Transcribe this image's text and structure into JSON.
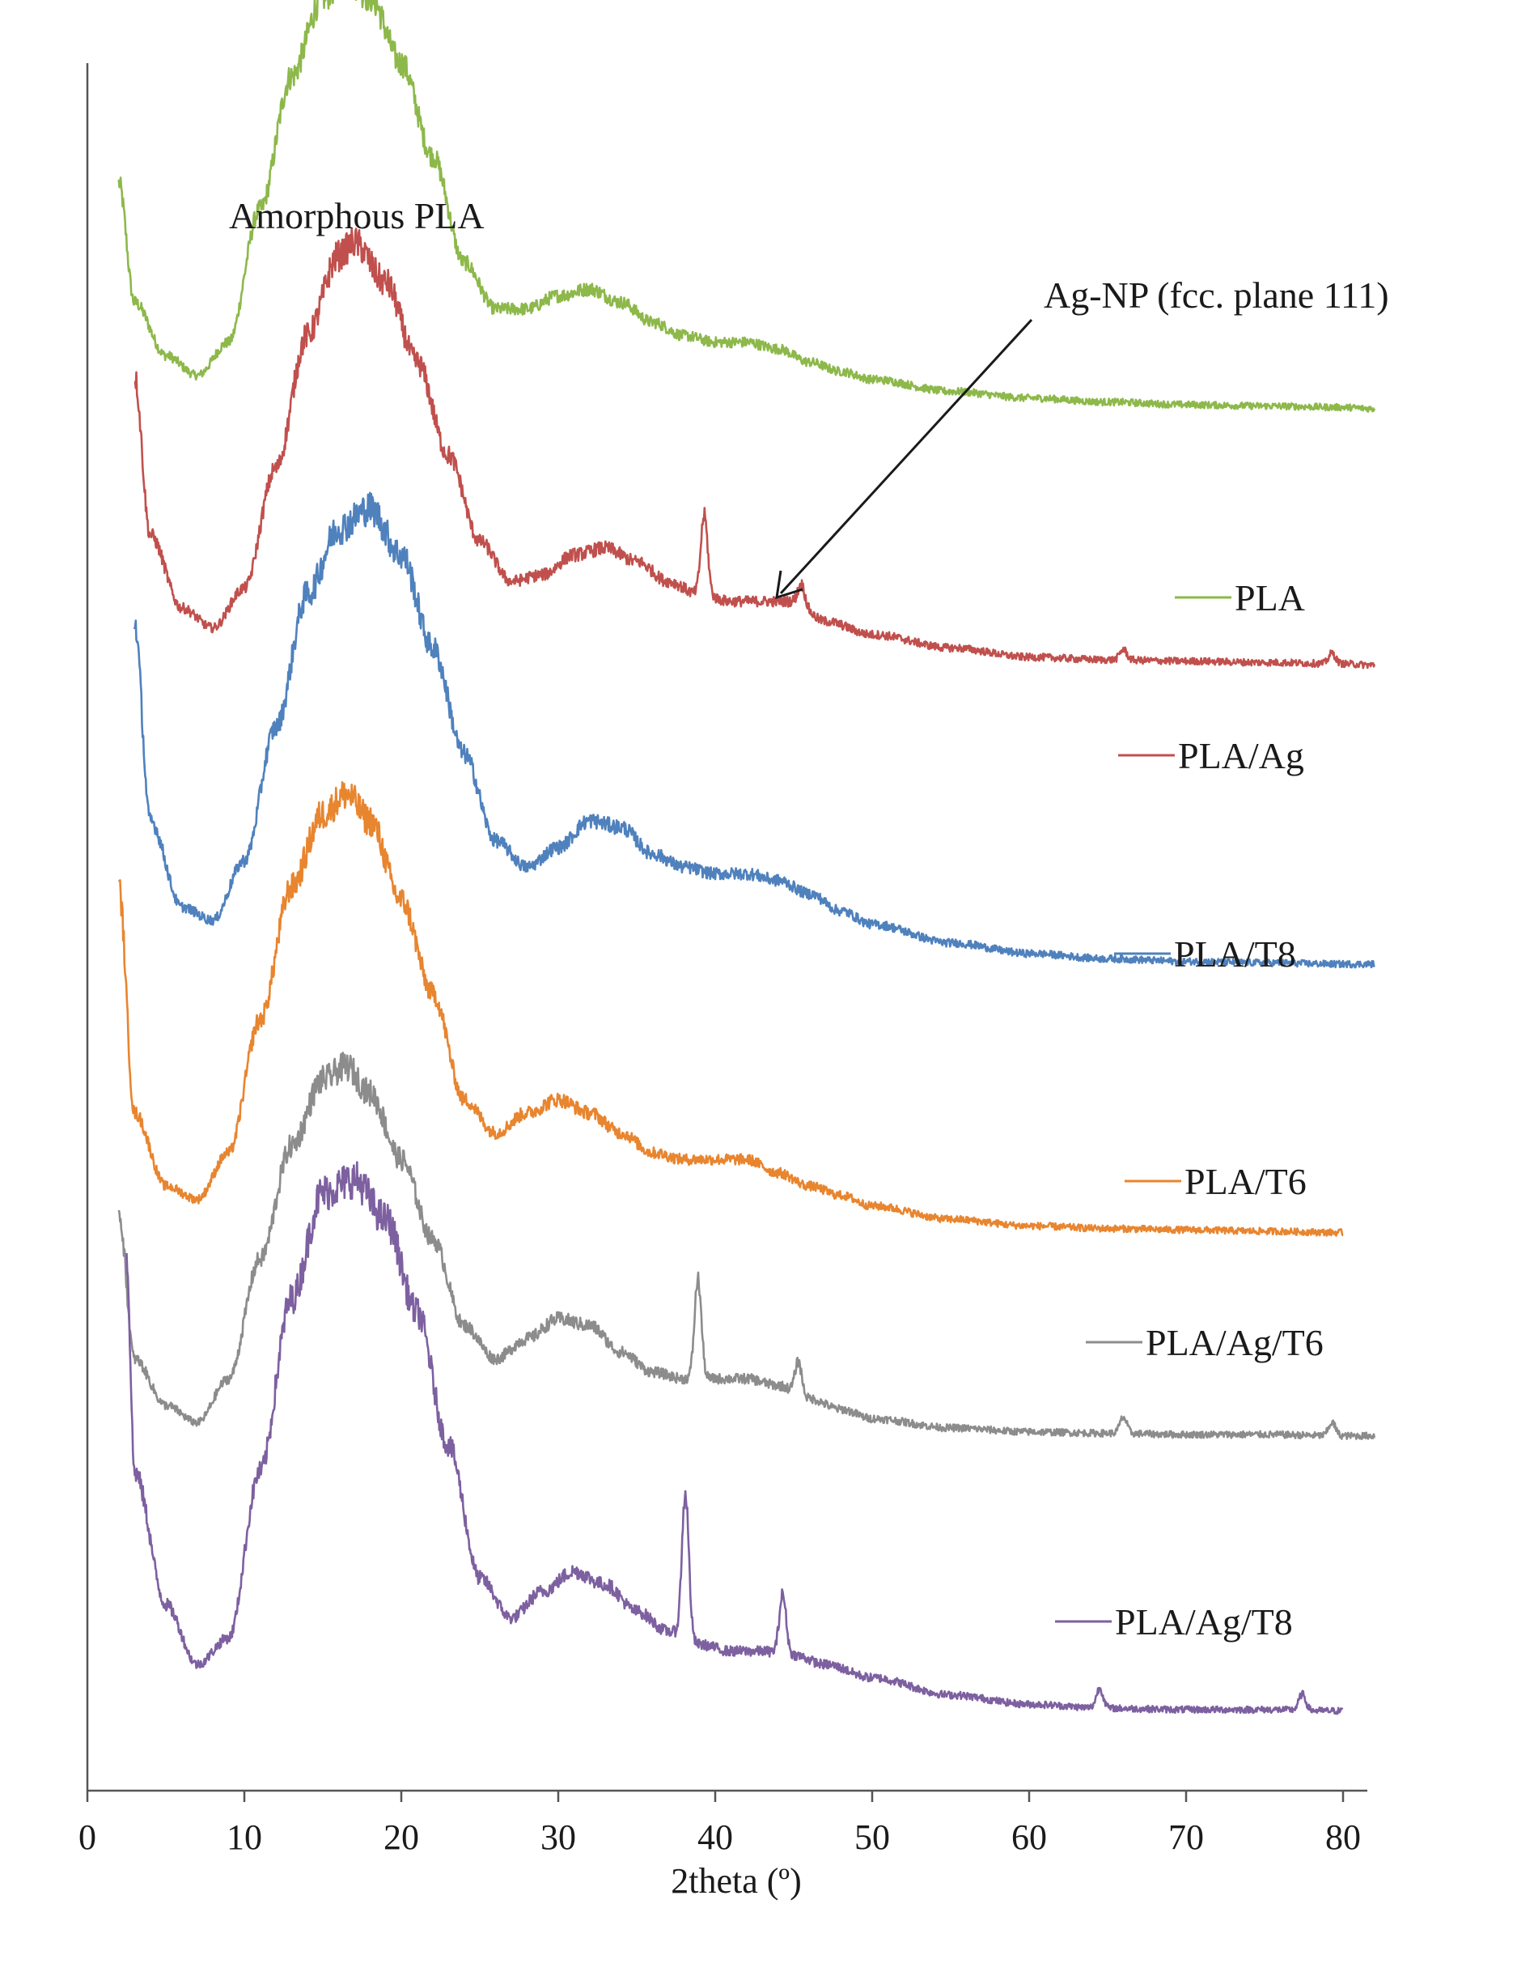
{
  "chart_data": {
    "type": "line",
    "title": "",
    "xlabel": "2theta (º)",
    "ylabel": "",
    "xlim": [
      0,
      80
    ],
    "ylim": [
      0,
      13
    ],
    "y_axis_ticks_shown": false,
    "grid": false,
    "x_ticks": [
      "0",
      "10",
      "20",
      "30",
      "40",
      "50",
      "60",
      "70",
      "80"
    ],
    "colors": {
      "PLA": "#8db84a",
      "PLA/Ag": "#c0504d",
      "PLA/T8": "#4f81bd",
      "PLA/T6": "#e8852f",
      "PLA/Ag/T6": "#8c8c8c",
      "PLA/Ag/T8": "#7d60a0"
    },
    "series": [
      {
        "name": "PLA",
        "offset": 10.4,
        "x": [
          2,
          3,
          5,
          7,
          9,
          11,
          13,
          15,
          16.5,
          18,
          20,
          22,
          24,
          26,
          28,
          30,
          32,
          34,
          36,
          38,
          40,
          42,
          44,
          46,
          48,
          50,
          55,
          60,
          65,
          70,
          75,
          80,
          82
        ],
        "y": [
          1.7,
          0.8,
          0.4,
          0.25,
          0.5,
          1.5,
          2.5,
          3.1,
          3.25,
          3.1,
          2.6,
          1.9,
          1.1,
          0.75,
          0.75,
          0.85,
          0.9,
          0.8,
          0.65,
          0.55,
          0.5,
          0.5,
          0.45,
          0.35,
          0.28,
          0.22,
          0.13,
          0.08,
          0.05,
          0.03,
          0.02,
          0.01,
          0.0
        ],
        "peaks": []
      },
      {
        "name": "PLA/Ag",
        "offset": 8.45,
        "x": [
          3,
          4,
          6,
          8,
          10,
          12,
          14,
          16,
          17,
          19,
          21,
          23,
          25,
          27,
          29,
          31,
          33,
          35,
          37,
          39,
          41,
          43,
          45,
          47,
          50,
          55,
          60,
          65,
          70,
          75,
          80,
          82
        ],
        "y": [
          2.2,
          1.0,
          0.45,
          0.3,
          0.6,
          1.5,
          2.5,
          3.1,
          3.2,
          2.9,
          2.3,
          1.6,
          0.95,
          0.65,
          0.7,
          0.85,
          0.9,
          0.8,
          0.65,
          0.55,
          0.5,
          0.5,
          0.5,
          0.35,
          0.25,
          0.15,
          0.08,
          0.06,
          0.05,
          0.04,
          0.03,
          0.02
        ],
        "peaks": [
          {
            "x": 39.3,
            "h": 0.6
          },
          {
            "x": 45.5,
            "h": 0.15
          },
          {
            "x": 66.0,
            "h": 0.08
          },
          {
            "x": 79.3,
            "h": 0.08
          }
        ]
      },
      {
        "name": "PLA/T8",
        "offset": 6.2,
        "x": [
          3,
          4,
          6,
          8,
          10,
          12,
          14,
          16,
          18,
          20,
          22,
          24,
          26,
          28,
          30,
          32,
          34,
          36,
          38,
          40,
          42,
          44,
          46,
          48,
          50,
          55,
          60,
          65,
          70,
          75,
          80,
          82
        ],
        "y": [
          2.6,
          1.1,
          0.45,
          0.35,
          0.8,
          1.8,
          2.8,
          3.3,
          3.45,
          3.1,
          2.4,
          1.6,
          0.95,
          0.75,
          0.9,
          1.1,
          1.05,
          0.85,
          0.75,
          0.7,
          0.7,
          0.65,
          0.55,
          0.42,
          0.32,
          0.18,
          0.1,
          0.06,
          0.04,
          0.03,
          0.02,
          0.02
        ],
        "peaks": []
      },
      {
        "name": "PLA/T6",
        "offset": 4.2,
        "x": [
          2,
          3,
          5,
          7,
          9,
          11,
          13,
          15,
          16.5,
          18,
          20,
          22,
          24,
          26,
          28,
          30,
          32,
          34,
          36,
          38,
          40,
          42,
          44,
          46,
          48,
          50,
          55,
          60,
          65,
          70,
          75,
          80
        ],
        "y": [
          2.6,
          0.9,
          0.35,
          0.25,
          0.6,
          1.6,
          2.6,
          3.15,
          3.3,
          3.1,
          2.5,
          1.8,
          1.0,
          0.75,
          0.9,
          1.0,
          0.9,
          0.75,
          0.6,
          0.55,
          0.55,
          0.55,
          0.45,
          0.35,
          0.28,
          0.2,
          0.1,
          0.05,
          0.03,
          0.02,
          0.01,
          0.0
        ],
        "peaks": []
      },
      {
        "name": "PLA/Ag/T6",
        "offset": 2.65,
        "x": [
          2,
          3,
          5,
          7,
          9,
          11,
          13,
          15,
          16.5,
          18,
          20,
          22,
          24,
          26,
          28,
          30,
          32,
          34,
          36,
          38,
          40,
          42,
          44,
          46,
          48,
          50,
          55,
          60,
          65,
          70,
          75,
          80,
          82
        ],
        "y": [
          1.7,
          0.6,
          0.25,
          0.12,
          0.45,
          1.35,
          2.2,
          2.7,
          2.8,
          2.6,
          2.1,
          1.5,
          0.85,
          0.6,
          0.75,
          0.9,
          0.85,
          0.65,
          0.5,
          0.45,
          0.45,
          0.45,
          0.4,
          0.3,
          0.22,
          0.15,
          0.08,
          0.05,
          0.04,
          0.03,
          0.03,
          0.02,
          0.02
        ],
        "peaks": [
          {
            "x": 38.9,
            "h": 0.75
          },
          {
            "x": 45.3,
            "h": 0.25
          },
          {
            "x": 66.0,
            "h": 0.12
          },
          {
            "x": 79.3,
            "h": 0.1
          }
        ]
      },
      {
        "name": "PLA/Ag/T8",
        "offset": 0.6,
        "x": [
          2.5,
          3,
          5,
          7,
          9,
          11,
          13,
          15,
          17,
          19,
          21,
          23,
          25,
          27,
          29,
          31,
          33,
          35,
          37,
          39,
          41,
          43,
          45,
          47,
          50,
          55,
          60,
          65,
          70,
          75,
          80
        ],
        "y": [
          3.4,
          1.8,
          0.8,
          0.35,
          0.55,
          1.8,
          3.1,
          3.9,
          4.0,
          3.7,
          3.0,
          2.0,
          1.0,
          0.7,
          0.9,
          1.05,
          0.95,
          0.75,
          0.6,
          0.5,
          0.45,
          0.45,
          0.42,
          0.35,
          0.25,
          0.12,
          0.05,
          0.02,
          0.01,
          0.01,
          0.0
        ],
        "peaks": [
          {
            "x": 38.1,
            "h": 1.1
          },
          {
            "x": 44.3,
            "h": 0.45
          },
          {
            "x": 64.5,
            "h": 0.15
          },
          {
            "x": 77.4,
            "h": 0.12
          }
        ]
      }
    ],
    "annotations": [
      {
        "text": "Amorphous PLA"
      },
      {
        "text": "Ag-NP (fcc. plane 111)"
      }
    ],
    "legend_placement": "inline, right of each trace"
  }
}
